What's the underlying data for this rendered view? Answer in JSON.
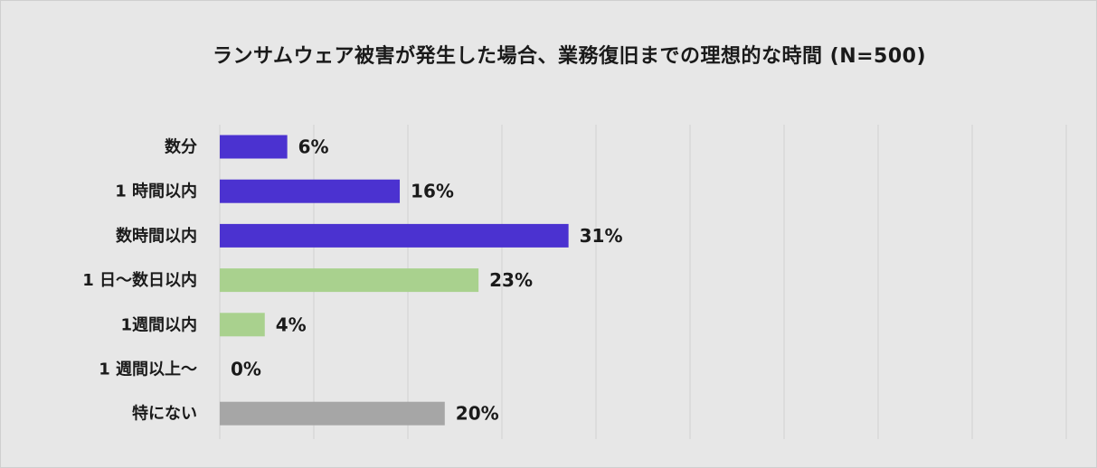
{
  "chart_data": {
    "type": "bar",
    "orientation": "horizontal",
    "title": "ランサムウェア被害が発生した場合、業務復旧までの理想的な時間 (N=500)",
    "categories": [
      "数分",
      "1 時間以内",
      "数時間以内",
      "1 日～数日以内",
      "1週間以内",
      "1 週間以上～",
      "特にない"
    ],
    "values": [
      6,
      16,
      31,
      23,
      4,
      0,
      20
    ],
    "value_labels": [
      "6%",
      "16%",
      "31%",
      "23%",
      "4%",
      "0%",
      "20%"
    ],
    "bar_colors": [
      "#4b32d0",
      "#4b32d0",
      "#4b32d0",
      "#a9d18e",
      "#a9d18e",
      "#a9d18e",
      "#a6a6a6"
    ],
    "xlim": [
      0,
      36
    ],
    "grid": true,
    "legend": "none",
    "xlabel": "",
    "ylabel": ""
  }
}
